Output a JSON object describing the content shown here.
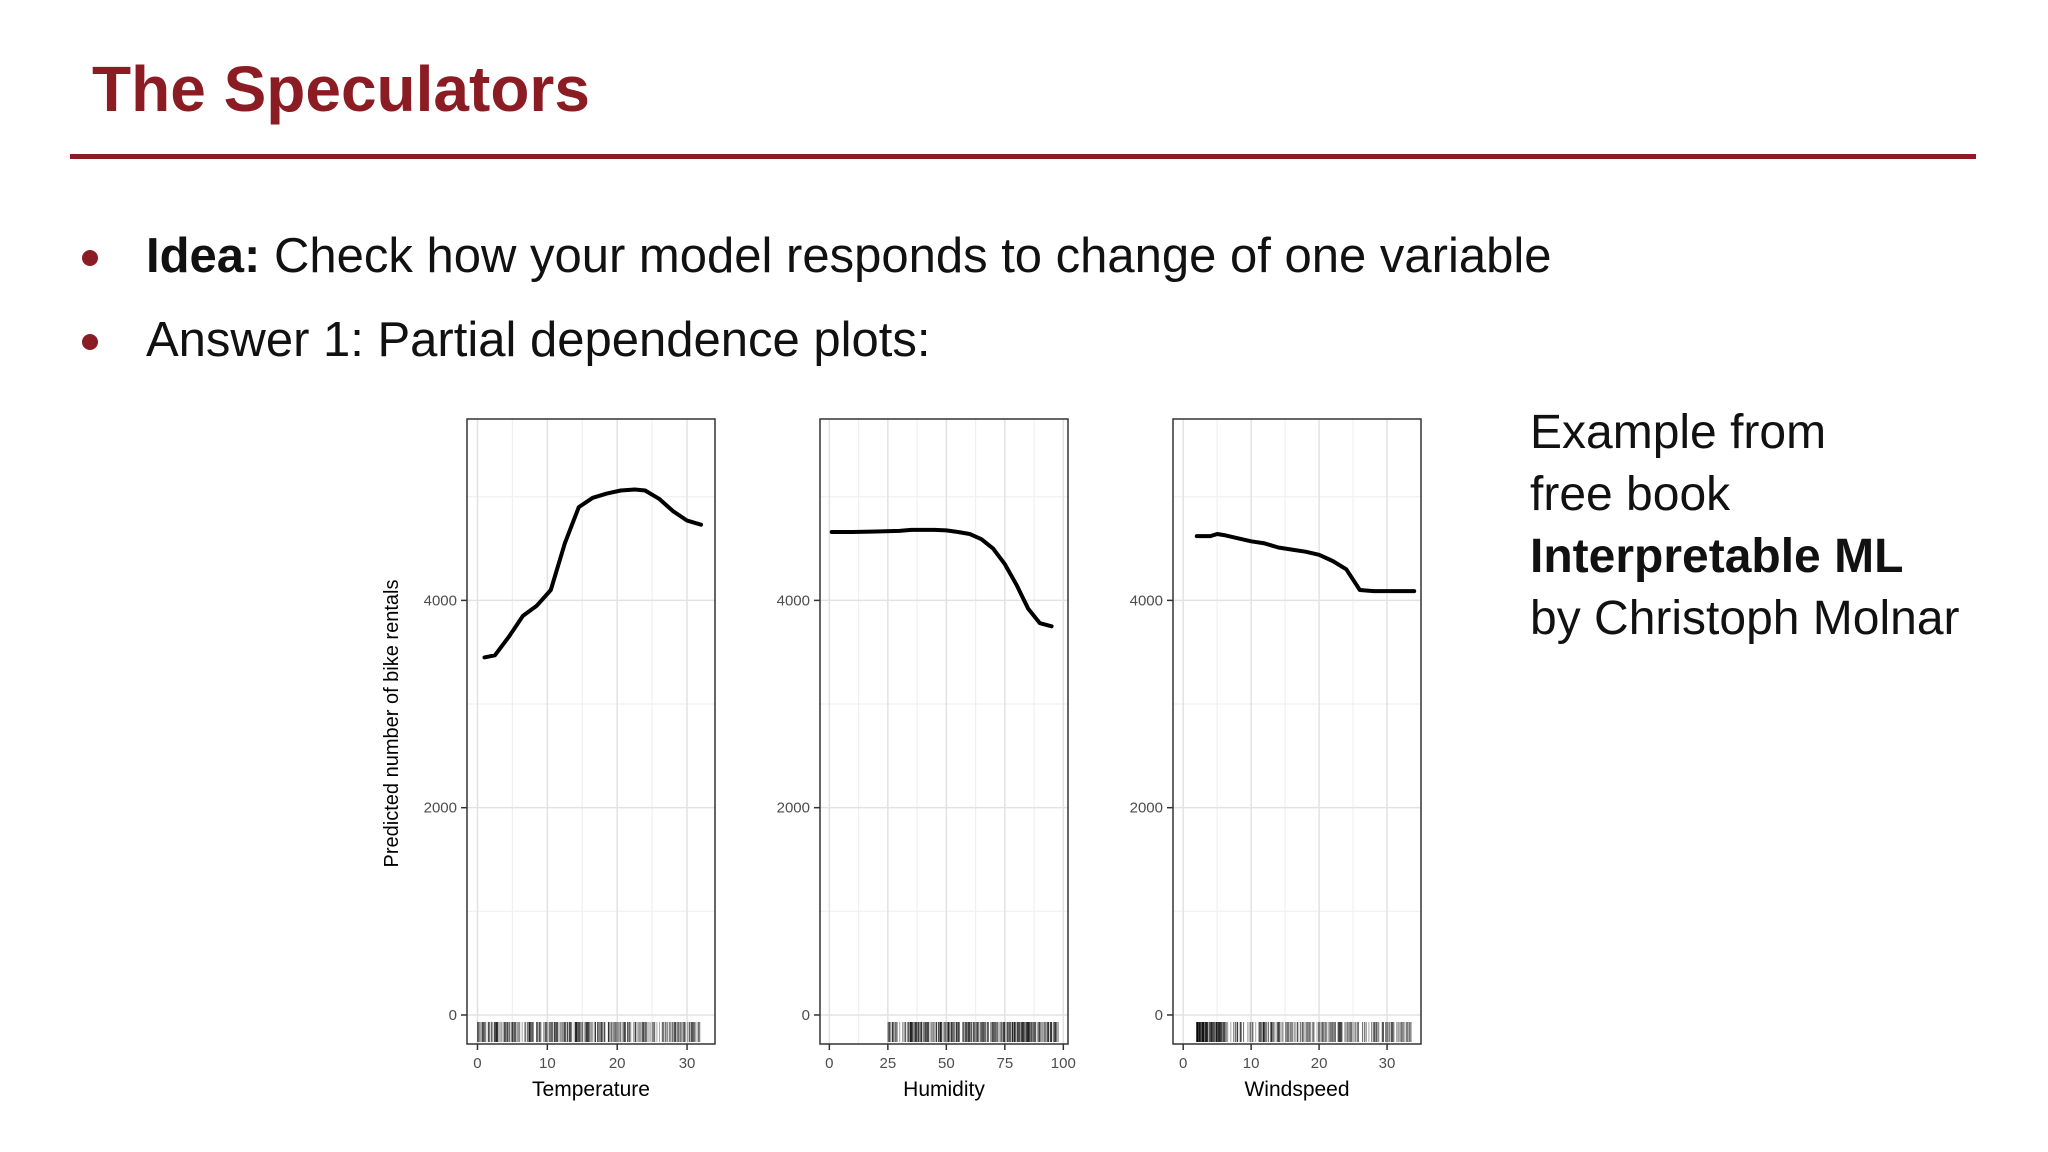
{
  "slide": {
    "title": "The Speculators",
    "bullets": [
      {
        "bold": "Idea:",
        "text": " Check how your model responds to change of one variable"
      },
      {
        "bold": "",
        "text": "Answer 1: Partial dependence plots:"
      }
    ],
    "note": {
      "line1": "Example from",
      "line2": "free book",
      "line3": "Interpretable ML",
      "line4": "by Christoph Molnar"
    },
    "colors": {
      "accent": "#8b1c24",
      "text": "#111111"
    }
  },
  "chart_data": [
    {
      "type": "line",
      "xlabel": "Temperature",
      "ylabel": "Predicted number of bike rentals",
      "x_ticks": [
        0,
        10,
        20,
        30
      ],
      "xlim": [
        -1.5,
        34
      ],
      "y_ticks": [
        0,
        2000,
        4000
      ],
      "ylim": [
        -280,
        5750
      ],
      "x": [
        1,
        2.5,
        4.5,
        6.5,
        8.5,
        10.5,
        12.5,
        14.5,
        16.5,
        18.5,
        20.5,
        22.5,
        24,
        26,
        28,
        30,
        32
      ],
      "y": [
        3450,
        3470,
        3650,
        3850,
        3950,
        4100,
        4550,
        4900,
        4990,
        5030,
        5060,
        5070,
        5060,
        4980,
        4860,
        4770,
        4730
      ],
      "rug": {
        "min": 0,
        "max": 32
      }
    },
    {
      "type": "line",
      "xlabel": "Humidity",
      "ylabel": "",
      "x_ticks": [
        0,
        25,
        50,
        75,
        100
      ],
      "xlim": [
        -4,
        102
      ],
      "y_ticks": [
        0,
        2000,
        4000
      ],
      "ylim": [
        -280,
        5750
      ],
      "x": [
        1,
        10,
        20,
        30,
        35,
        40,
        45,
        50,
        55,
        60,
        65,
        70,
        75,
        80,
        85,
        90,
        95
      ],
      "y": [
        4660,
        4660,
        4665,
        4670,
        4680,
        4680,
        4680,
        4675,
        4660,
        4640,
        4590,
        4500,
        4350,
        4150,
        3920,
        3780,
        3750
      ],
      "rug": {
        "min": 25,
        "max": 98
      }
    },
    {
      "type": "line",
      "xlabel": "Windspeed",
      "ylabel": "",
      "x_ticks": [
        0,
        10,
        20,
        30
      ],
      "xlim": [
        -1.5,
        35
      ],
      "y_ticks": [
        0,
        2000,
        4000
      ],
      "ylim": [
        -280,
        5750
      ],
      "x": [
        2,
        4,
        5,
        6,
        8,
        10,
        12,
        14,
        16,
        18,
        20,
        22,
        24,
        25,
        26,
        28,
        30,
        32,
        34
      ],
      "y": [
        4620,
        4620,
        4640,
        4630,
        4600,
        4570,
        4550,
        4510,
        4490,
        4470,
        4440,
        4380,
        4300,
        4200,
        4100,
        4090,
        4090,
        4090,
        4090
      ],
      "rug": {
        "min": 2,
        "max": 34
      }
    }
  ]
}
